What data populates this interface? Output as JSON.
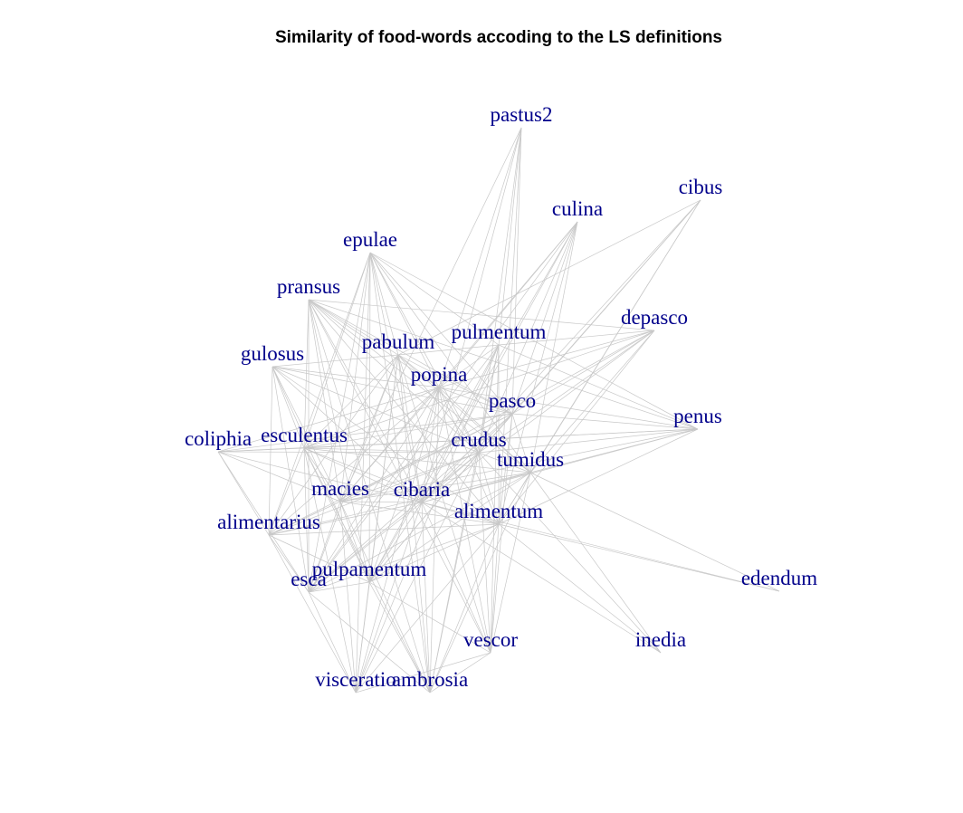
{
  "title": "Similarity of food-words accoding to the LS definitions",
  "colors": {
    "background": "#ffffff",
    "title": "#000000",
    "node_label": "#00008b",
    "edge": "#c8c8c8"
  },
  "nodes": [
    {
      "id": "pastus2",
      "label": "pastus2"
    },
    {
      "id": "cibus",
      "label": "cibus"
    },
    {
      "id": "culina",
      "label": "culina"
    },
    {
      "id": "epulae",
      "label": "epulae"
    },
    {
      "id": "pransus",
      "label": "pransus"
    },
    {
      "id": "depasco",
      "label": "depasco"
    },
    {
      "id": "pulmentum",
      "label": "pulmentum"
    },
    {
      "id": "pabulum",
      "label": "pabulum"
    },
    {
      "id": "gulosus",
      "label": "gulosus"
    },
    {
      "id": "popina",
      "label": "popina"
    },
    {
      "id": "pasco",
      "label": "pasco"
    },
    {
      "id": "penus",
      "label": "penus"
    },
    {
      "id": "coliphia",
      "label": "coliphia"
    },
    {
      "id": "esculentus",
      "label": "esculentus"
    },
    {
      "id": "crudus",
      "label": "crudus"
    },
    {
      "id": "tumidus",
      "label": "tumidus"
    },
    {
      "id": "macies",
      "label": "macies"
    },
    {
      "id": "cibaria",
      "label": "cibaria"
    },
    {
      "id": "alimentum",
      "label": "alimentum"
    },
    {
      "id": "alimentarius",
      "label": "alimentarius"
    },
    {
      "id": "esca",
      "label": "esca"
    },
    {
      "id": "pulpamentum",
      "label": "pulpamentum"
    },
    {
      "id": "edendum",
      "label": "edendum"
    },
    {
      "id": "vescor",
      "label": "vescor"
    },
    {
      "id": "inedia",
      "label": "inedia"
    },
    {
      "id": "visceratio",
      "label": "visceratio"
    },
    {
      "id": "ambrosia",
      "label": "ambrosia"
    }
  ],
  "edges": [
    [
      "pastus2",
      "pulmentum"
    ],
    [
      "pastus2",
      "pasco"
    ],
    [
      "pastus2",
      "crudus"
    ],
    [
      "pastus2",
      "cibaria"
    ],
    [
      "pastus2",
      "alimentum"
    ],
    [
      "pastus2",
      "macies"
    ],
    [
      "pastus2",
      "popina"
    ],
    [
      "cibus",
      "pasco"
    ],
    [
      "cibus",
      "crudus"
    ],
    [
      "cibus",
      "tumidus"
    ],
    [
      "cibus",
      "pabulum"
    ],
    [
      "cibus",
      "cibaria"
    ],
    [
      "cibus",
      "alimentum"
    ],
    [
      "culina",
      "popina"
    ],
    [
      "culina",
      "pasco"
    ],
    [
      "culina",
      "crudus"
    ],
    [
      "culina",
      "tumidus"
    ],
    [
      "culina",
      "cibaria"
    ],
    [
      "culina",
      "alimentum"
    ],
    [
      "culina",
      "pulpamentum"
    ],
    [
      "culina",
      "esca"
    ],
    [
      "culina",
      "macies"
    ],
    [
      "epulae",
      "pabulum"
    ],
    [
      "epulae",
      "popina"
    ],
    [
      "epulae",
      "pasco"
    ],
    [
      "epulae",
      "crudus"
    ],
    [
      "epulae",
      "esculentus"
    ],
    [
      "epulae",
      "macies"
    ],
    [
      "epulae",
      "cibaria"
    ],
    [
      "epulae",
      "alimentarius"
    ],
    [
      "epulae",
      "esca"
    ],
    [
      "epulae",
      "pulpamentum"
    ],
    [
      "epulae",
      "visceratio"
    ],
    [
      "epulae",
      "ambrosia"
    ],
    [
      "epulae",
      "tumidus"
    ],
    [
      "epulae",
      "penus"
    ],
    [
      "epulae",
      "pulmentum"
    ],
    [
      "pransus",
      "pabulum"
    ],
    [
      "pransus",
      "popina"
    ],
    [
      "pransus",
      "pasco"
    ],
    [
      "pransus",
      "crudus"
    ],
    [
      "pransus",
      "tumidus"
    ],
    [
      "pransus",
      "cibaria"
    ],
    [
      "pransus",
      "alimentum"
    ],
    [
      "pransus",
      "macies"
    ],
    [
      "pransus",
      "esculentus"
    ],
    [
      "pransus",
      "esca"
    ],
    [
      "pransus",
      "pulpamentum"
    ],
    [
      "pransus",
      "penus"
    ],
    [
      "pransus",
      "depasco"
    ],
    [
      "pransus",
      "vescor"
    ],
    [
      "pransus",
      "ambrosia"
    ],
    [
      "depasco",
      "pulmentum"
    ],
    [
      "depasco",
      "pasco"
    ],
    [
      "depasco",
      "crudus"
    ],
    [
      "depasco",
      "tumidus"
    ],
    [
      "depasco",
      "cibaria"
    ],
    [
      "depasco",
      "esculentus"
    ],
    [
      "depasco",
      "alimentum"
    ],
    [
      "depasco",
      "popina"
    ],
    [
      "depasco",
      "macies"
    ],
    [
      "pulmentum",
      "pabulum"
    ],
    [
      "pulmentum",
      "popina"
    ],
    [
      "pulmentum",
      "crudus"
    ],
    [
      "pulmentum",
      "cibaria"
    ],
    [
      "pulmentum",
      "alimentum"
    ],
    [
      "pulmentum",
      "esca"
    ],
    [
      "pulmentum",
      "pulpamentum"
    ],
    [
      "pulmentum",
      "vescor"
    ],
    [
      "pulmentum",
      "visceratio"
    ],
    [
      "pulmentum",
      "ambrosia"
    ],
    [
      "pulmentum",
      "penus"
    ],
    [
      "pabulum",
      "gulosus"
    ],
    [
      "pabulum",
      "popina"
    ],
    [
      "pabulum",
      "pasco"
    ],
    [
      "pabulum",
      "crudus"
    ],
    [
      "pabulum",
      "tumidus"
    ],
    [
      "pabulum",
      "esculentus"
    ],
    [
      "pabulum",
      "macies"
    ],
    [
      "pabulum",
      "cibaria"
    ],
    [
      "pabulum",
      "alimentarius"
    ],
    [
      "pabulum",
      "esca"
    ],
    [
      "pabulum",
      "pulpamentum"
    ],
    [
      "pabulum",
      "visceratio"
    ],
    [
      "pabulum",
      "ambrosia"
    ],
    [
      "pabulum",
      "vescor"
    ],
    [
      "gulosus",
      "popina"
    ],
    [
      "gulosus",
      "pasco"
    ],
    [
      "gulosus",
      "crudus"
    ],
    [
      "gulosus",
      "esculentus"
    ],
    [
      "gulosus",
      "macies"
    ],
    [
      "gulosus",
      "cibaria"
    ],
    [
      "gulosus",
      "alimentarius"
    ],
    [
      "gulosus",
      "esca"
    ],
    [
      "gulosus",
      "pulpamentum"
    ],
    [
      "gulosus",
      "alimentum"
    ],
    [
      "popina",
      "pasco"
    ],
    [
      "popina",
      "crudus"
    ],
    [
      "popina",
      "tumidus"
    ],
    [
      "popina",
      "cibaria"
    ],
    [
      "popina",
      "alimentum"
    ],
    [
      "popina",
      "esculentus"
    ],
    [
      "popina",
      "macies"
    ],
    [
      "popina",
      "alimentarius"
    ],
    [
      "popina",
      "esca"
    ],
    [
      "popina",
      "pulpamentum"
    ],
    [
      "popina",
      "vescor"
    ],
    [
      "popina",
      "visceratio"
    ],
    [
      "popina",
      "ambrosia"
    ],
    [
      "popina",
      "penus"
    ],
    [
      "popina",
      "coliphia"
    ],
    [
      "pasco",
      "crudus"
    ],
    [
      "pasco",
      "tumidus"
    ],
    [
      "pasco",
      "esculentus"
    ],
    [
      "pasco",
      "macies"
    ],
    [
      "pasco",
      "cibaria"
    ],
    [
      "pasco",
      "alimentum"
    ],
    [
      "pasco",
      "alimentarius"
    ],
    [
      "pasco",
      "esca"
    ],
    [
      "pasco",
      "pulpamentum"
    ],
    [
      "pasco",
      "coliphia"
    ],
    [
      "pasco",
      "penus"
    ],
    [
      "pasco",
      "vescor"
    ],
    [
      "penus",
      "crudus"
    ],
    [
      "penus",
      "esculentus"
    ],
    [
      "penus",
      "tumidus"
    ],
    [
      "penus",
      "cibaria"
    ],
    [
      "penus",
      "alimentum"
    ],
    [
      "penus",
      "macies"
    ],
    [
      "penus",
      "coliphia"
    ],
    [
      "coliphia",
      "esculentus"
    ],
    [
      "coliphia",
      "crudus"
    ],
    [
      "coliphia",
      "cibaria"
    ],
    [
      "coliphia",
      "alimentarius"
    ],
    [
      "coliphia",
      "esca"
    ],
    [
      "coliphia",
      "macies"
    ],
    [
      "esculentus",
      "crudus"
    ],
    [
      "esculentus",
      "tumidus"
    ],
    [
      "esculentus",
      "macies"
    ],
    [
      "esculentus",
      "cibaria"
    ],
    [
      "esculentus",
      "alimentum"
    ],
    [
      "esculentus",
      "alimentarius"
    ],
    [
      "esculentus",
      "esca"
    ],
    [
      "esculentus",
      "pulpamentum"
    ],
    [
      "esculentus",
      "visceratio"
    ],
    [
      "esculentus",
      "ambrosia"
    ],
    [
      "crudus",
      "tumidus"
    ],
    [
      "crudus",
      "macies"
    ],
    [
      "crudus",
      "cibaria"
    ],
    [
      "crudus",
      "alimentum"
    ],
    [
      "crudus",
      "alimentarius"
    ],
    [
      "crudus",
      "esca"
    ],
    [
      "crudus",
      "pulpamentum"
    ],
    [
      "crudus",
      "vescor"
    ],
    [
      "crudus",
      "visceratio"
    ],
    [
      "crudus",
      "ambrosia"
    ],
    [
      "crudus",
      "inedia"
    ],
    [
      "tumidus",
      "macies"
    ],
    [
      "tumidus",
      "cibaria"
    ],
    [
      "tumidus",
      "alimentum"
    ],
    [
      "tumidus",
      "alimentarius"
    ],
    [
      "tumidus",
      "esca"
    ],
    [
      "tumidus",
      "pulpamentum"
    ],
    [
      "tumidus",
      "edendum"
    ],
    [
      "tumidus",
      "inedia"
    ],
    [
      "tumidus",
      "vescor"
    ],
    [
      "tumidus",
      "ambrosia"
    ],
    [
      "macies",
      "cibaria"
    ],
    [
      "macies",
      "alimentum"
    ],
    [
      "macies",
      "alimentarius"
    ],
    [
      "macies",
      "esca"
    ],
    [
      "macies",
      "pulpamentum"
    ],
    [
      "macies",
      "visceratio"
    ],
    [
      "macies",
      "ambrosia"
    ],
    [
      "cibaria",
      "alimentum"
    ],
    [
      "cibaria",
      "alimentarius"
    ],
    [
      "cibaria",
      "esca"
    ],
    [
      "cibaria",
      "pulpamentum"
    ],
    [
      "cibaria",
      "vescor"
    ],
    [
      "cibaria",
      "visceratio"
    ],
    [
      "cibaria",
      "ambrosia"
    ],
    [
      "cibaria",
      "inedia"
    ],
    [
      "cibaria",
      "edendum"
    ],
    [
      "alimentum",
      "alimentarius"
    ],
    [
      "alimentum",
      "esca"
    ],
    [
      "alimentum",
      "pulpamentum"
    ],
    [
      "alimentum",
      "vescor"
    ],
    [
      "alimentum",
      "visceratio"
    ],
    [
      "alimentum",
      "ambrosia"
    ],
    [
      "alimentum",
      "inedia"
    ],
    [
      "alimentum",
      "edendum"
    ],
    [
      "alimentarius",
      "esca"
    ],
    [
      "alimentarius",
      "pulpamentum"
    ],
    [
      "alimentarius",
      "visceratio"
    ],
    [
      "esca",
      "pulpamentum"
    ],
    [
      "esca",
      "visceratio"
    ],
    [
      "esca",
      "ambrosia"
    ],
    [
      "pulpamentum",
      "visceratio"
    ],
    [
      "pulpamentum",
      "ambrosia"
    ],
    [
      "pulpamentum",
      "vescor"
    ],
    [
      "vescor",
      "ambrosia"
    ],
    [
      "vescor",
      "visceratio"
    ]
  ]
}
